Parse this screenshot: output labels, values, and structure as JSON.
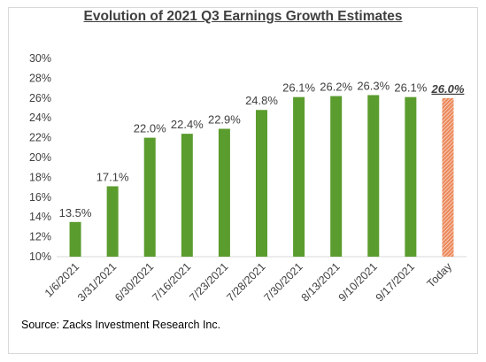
{
  "chart_data": {
    "type": "bar",
    "title": "Evolution of 2021 Q3 Earnings Growth Estimates",
    "categories": [
      "1/6/2021",
      "3/31/2021",
      "6/30/2021",
      "7/16/2021",
      "7/23/2021",
      "7/28/2021",
      "7/30/2021",
      "8/13/2021",
      "9/10/2021",
      "9/17/2021",
      "Today"
    ],
    "values": [
      13.5,
      17.1,
      22.0,
      22.4,
      22.9,
      24.8,
      26.1,
      26.2,
      26.3,
      26.1,
      26.0
    ],
    "data_labels": [
      "13.5%",
      "17.1%",
      "22.0%",
      "22.4%",
      "22.9%",
      "24.8%",
      "26.1%",
      "26.2%",
      "26.3%",
      "26.1%",
      "26.0%"
    ],
    "highlight_index": 10,
    "ylim": [
      10,
      30
    ],
    "yticks": [
      10,
      12,
      14,
      16,
      18,
      20,
      22,
      24,
      26,
      28,
      30
    ],
    "ytick_labels": [
      "10%",
      "12%",
      "14%",
      "16%",
      "18%",
      "20%",
      "22%",
      "24%",
      "26%",
      "28%",
      "30%"
    ],
    "xlabel": "",
    "ylabel": "",
    "grid": false,
    "legend": "none",
    "colors": {
      "bar": "#5b9c2e",
      "highlight": "#ec8b5e",
      "highlight_stripe": "#ffffff"
    }
  },
  "source": "Source: Zacks Investment Research Inc."
}
